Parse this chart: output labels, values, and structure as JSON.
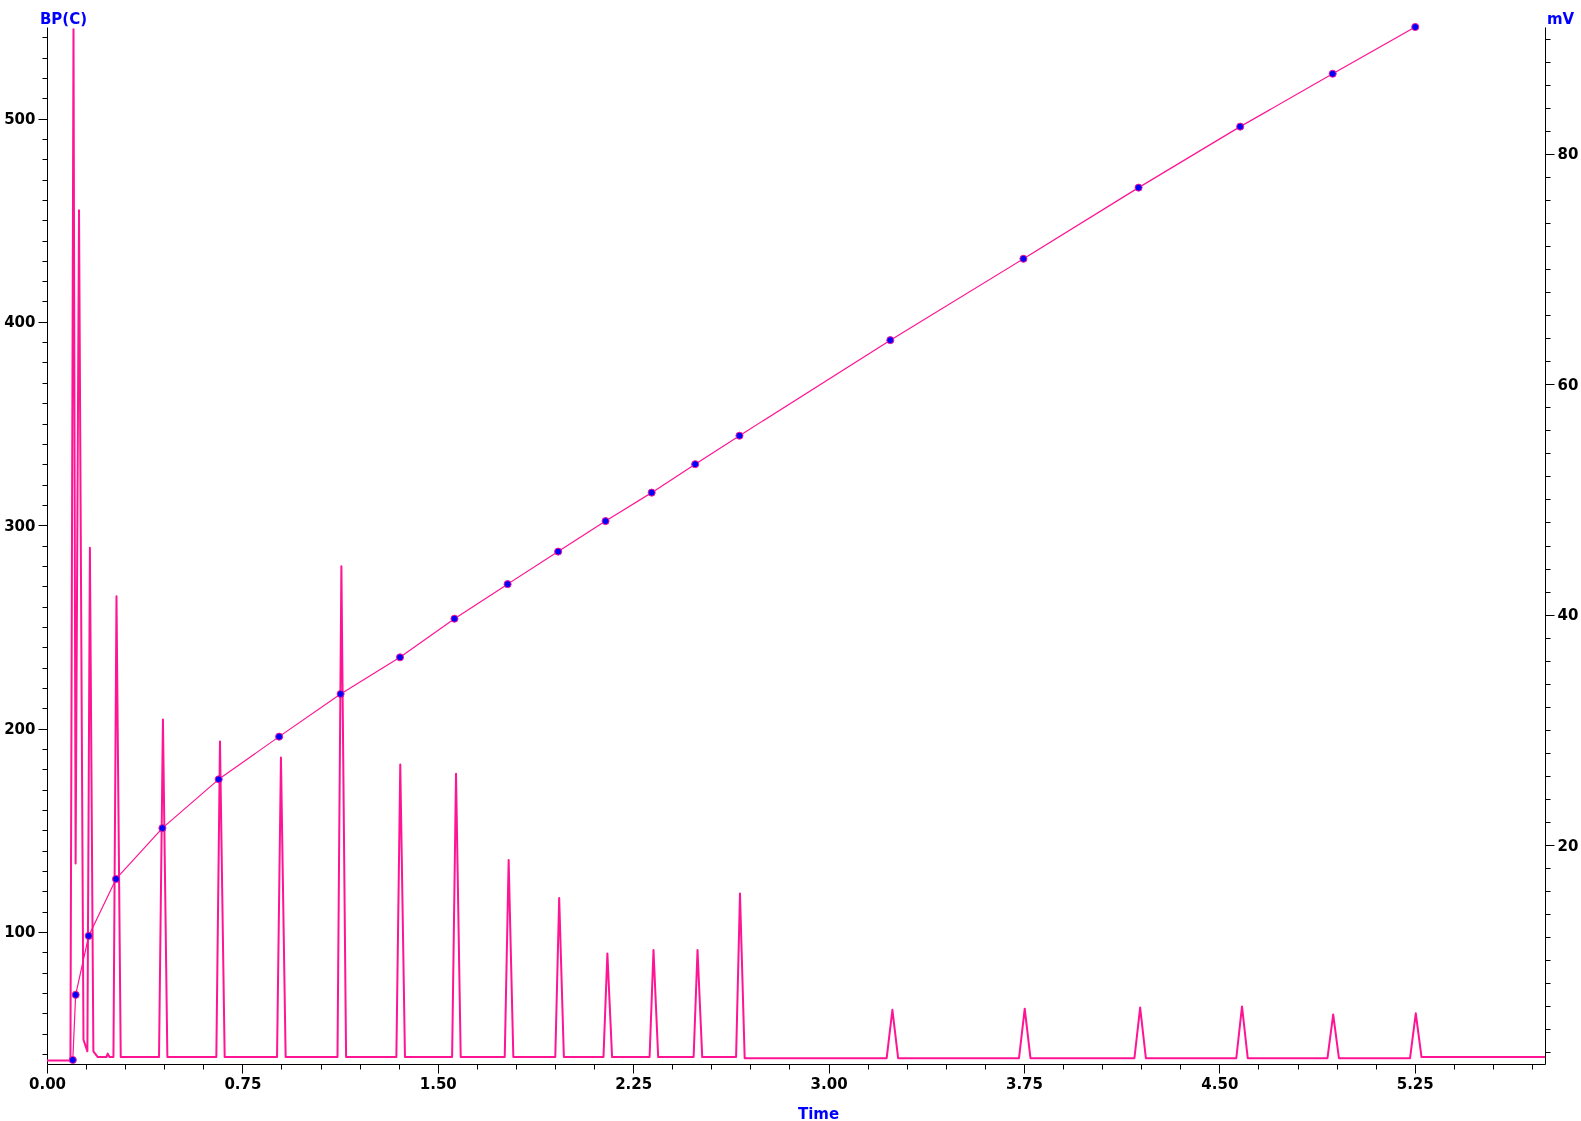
{
  "chart_data": {
    "type": "line",
    "xlabel": "Time",
    "ylabel": "BP(C)",
    "y2label": "mV",
    "xlim": [
      0,
      5.75
    ],
    "ylim": [
      35,
      545
    ],
    "y2lim": [
      1,
      91
    ],
    "xticks": [
      {
        "value": 0,
        "label": "0.00"
      },
      {
        "value": 0.15,
        "label": null
      },
      {
        "value": 0.3,
        "label": null
      },
      {
        "value": 0.45,
        "label": null
      },
      {
        "value": 0.6,
        "label": null
      },
      0.75,
      {
        "value": 0.9,
        "label": null
      },
      {
        "value": 1.05,
        "label": null
      },
      {
        "value": 1.2,
        "label": null
      },
      {
        "value": 1.35,
        "label": null
      },
      {
        "value": 1.5,
        "label": "1.50"
      },
      {
        "value": 1.65,
        "label": null
      },
      {
        "value": 1.8,
        "label": null
      },
      {
        "value": 1.95,
        "label": null
      },
      {
        "value": 2.1,
        "label": null
      },
      2.25,
      {
        "value": 2.4,
        "label": null
      },
      {
        "value": 2.55,
        "label": null
      },
      {
        "value": 2.7,
        "label": null
      },
      {
        "value": 2.85,
        "label": null
      },
      {
        "value": 3,
        "label": "3.00"
      },
      {
        "value": 3.15,
        "label": null
      },
      {
        "value": 3.3,
        "label": null
      },
      {
        "value": 3.45,
        "label": null
      },
      {
        "value": 3.6,
        "label": null
      },
      3.75,
      {
        "value": 3.9,
        "label": null
      },
      {
        "value": 4.05,
        "label": null
      },
      {
        "value": 4.2,
        "label": null
      },
      {
        "value": 4.35,
        "label": null
      },
      {
        "value": 4.5,
        "label": "4.50"
      },
      {
        "value": 4.65,
        "label": null
      },
      {
        "value": 4.8,
        "label": null
      },
      {
        "value": 4.95,
        "label": null
      },
      {
        "value": 5.1,
        "label": null
      },
      5.25,
      {
        "value": 5.4,
        "label": null
      },
      {
        "value": 5.55,
        "label": null
      },
      {
        "value": 5.7,
        "label": null
      }
    ],
    "yticks": [
      {
        "value": 40,
        "label": null
      },
      {
        "value": 50,
        "label": null
      },
      {
        "value": 60,
        "label": null
      },
      {
        "value": 70,
        "label": null
      },
      {
        "value": 80,
        "label": null
      },
      {
        "value": 90,
        "label": null
      },
      100,
      {
        "value": 110,
        "label": null
      },
      {
        "value": 120,
        "label": null
      },
      {
        "value": 130,
        "label": null
      },
      {
        "value": 140,
        "label": null
      },
      {
        "value": 150,
        "label": null
      },
      {
        "value": 160,
        "label": null
      },
      {
        "value": 170,
        "label": null
      },
      {
        "value": 180,
        "label": null
      },
      {
        "value": 190,
        "label": null
      },
      200,
      {
        "value": 210,
        "label": null
      },
      {
        "value": 220,
        "label": null
      },
      {
        "value": 230,
        "label": null
      },
      {
        "value": 240,
        "label": null
      },
      {
        "value": 250,
        "label": null
      },
      {
        "value": 260,
        "label": null
      },
      {
        "value": 270,
        "label": null
      },
      {
        "value": 280,
        "label": null
      },
      {
        "value": 290,
        "label": null
      },
      300,
      {
        "value": 310,
        "label": null
      },
      {
        "value": 320,
        "label": null
      },
      {
        "value": 330,
        "label": null
      },
      {
        "value": 340,
        "label": null
      },
      {
        "value": 350,
        "label": null
      },
      {
        "value": 360,
        "label": null
      },
      {
        "value": 370,
        "label": null
      },
      {
        "value": 380,
        "label": null
      },
      {
        "value": 390,
        "label": null
      },
      400,
      {
        "value": 410,
        "label": null
      },
      {
        "value": 420,
        "label": null
      },
      {
        "value": 430,
        "label": null
      },
      {
        "value": 440,
        "label": null
      },
      {
        "value": 450,
        "label": null
      },
      {
        "value": 460,
        "label": null
      },
      {
        "value": 470,
        "label": null
      },
      {
        "value": 480,
        "label": null
      },
      {
        "value": 490,
        "label": null
      },
      500,
      {
        "value": 510,
        "label": null
      },
      {
        "value": 520,
        "label": null
      },
      {
        "value": 530,
        "label": null
      },
      {
        "value": 540,
        "label": null
      }
    ],
    "y2ticks": [
      {
        "value": 2,
        "label": null
      },
      {
        "value": 4,
        "label": null
      },
      {
        "value": 6,
        "label": null
      },
      {
        "value": 8,
        "label": null
      },
      {
        "value": 10,
        "label": null
      },
      {
        "value": 12,
        "label": null
      },
      {
        "value": 14,
        "label": null
      },
      {
        "value": 16,
        "label": null
      },
      {
        "value": 18,
        "label": null
      },
      20,
      {
        "value": 22,
        "label": null
      },
      {
        "value": 24,
        "label": null
      },
      {
        "value": 26,
        "label": null
      },
      {
        "value": 28,
        "label": null
      },
      {
        "value": 30,
        "label": null
      },
      {
        "value": 32,
        "label": null
      },
      {
        "value": 34,
        "label": null
      },
      {
        "value": 36,
        "label": null
      },
      {
        "value": 38,
        "label": null
      },
      40,
      {
        "value": 42,
        "label": null
      },
      {
        "value": 44,
        "label": null
      },
      {
        "value": 46,
        "label": null
      },
      {
        "value": 48,
        "label": null
      },
      {
        "value": 50,
        "label": null
      },
      {
        "value": 52,
        "label": null
      },
      {
        "value": 54,
        "label": null
      },
      {
        "value": 56,
        "label": null
      },
      {
        "value": 58,
        "label": null
      },
      60,
      {
        "value": 62,
        "label": null
      },
      {
        "value": 64,
        "label": null
      },
      {
        "value": 66,
        "label": null
      },
      {
        "value": 68,
        "label": null
      },
      {
        "value": 70,
        "label": null
      },
      {
        "value": 72,
        "label": null
      },
      {
        "value": 74,
        "label": null
      },
      {
        "value": 76,
        "label": null
      },
      {
        "value": 78,
        "label": null
      },
      80,
      {
        "value": 82,
        "label": null
      },
      {
        "value": 84,
        "label": null
      },
      {
        "value": 86,
        "label": null
      },
      {
        "value": 88,
        "label": null
      },
      {
        "value": 90,
        "label": null
      }
    ],
    "grid": false,
    "series": [
      {
        "axis": "y2",
        "color": "#ff1493",
        "marker": "none",
        "x": [
          0,
          0.09,
          0.1017,
          0.1098,
          0.1229,
          0.14,
          0.155,
          0.1647,
          0.178,
          0.195,
          0.228,
          0.233,
          0.24,
          0.255,
          0.2667,
          0.283,
          0.43,
          0.445,
          0.462,
          0.65,
          0.664,
          0.682,
          0.883,
          0.898,
          0.916,
          1.115,
          1.13,
          1.148,
          1.341,
          1.356,
          1.374,
          1.555,
          1.57,
          1.588,
          1.757,
          1.772,
          1.79,
          1.951,
          1.966,
          1.984,
          2.136,
          2.151,
          2.169,
          2.313,
          2.328,
          2.346,
          2.482,
          2.497,
          2.515,
          2.645,
          2.66,
          2.678,
          3.223,
          3.245,
          3.267,
          3.731,
          3.753,
          3.775,
          4.174,
          4.196,
          4.218,
          4.565,
          4.587,
          4.609,
          4.915,
          4.937,
          4.959,
          5.232,
          5.254,
          5.276,
          5.75
        ],
        "values": [
          1.3,
          1.3,
          90.8,
          18.4,
          75.1,
          3.1,
          2.1,
          45.8,
          2.1,
          1.6,
          1.6,
          1.9,
          1.6,
          1.6,
          41.6,
          1.6,
          1.6,
          30.9,
          1.6,
          1.6,
          29.0,
          1.6,
          1.6,
          27.6,
          1.6,
          1.6,
          44.2,
          1.6,
          1.6,
          27.0,
          1.6,
          1.6,
          26.2,
          1.6,
          1.6,
          18.7,
          1.6,
          1.6,
          15.4,
          1.6,
          1.6,
          10.6,
          1.6,
          1.6,
          10.9,
          1.6,
          1.6,
          10.9,
          1.6,
          1.6,
          15.8,
          1.5,
          1.5,
          5.7,
          1.5,
          1.5,
          5.8,
          1.5,
          1.5,
          5.9,
          1.5,
          1.5,
          6.0,
          1.5,
          1.5,
          5.3,
          1.5,
          1.5,
          5.4,
          1.6,
          1.6
        ]
      },
      {
        "color": "#ff1493",
        "marker": "circle",
        "colors": [
          "#0000ff",
          "#0000ff",
          "#0000ff",
          "#0000ff",
          "#0000ff",
          "#0000ff",
          "#0000ff",
          "#0000ff",
          "#0000ff",
          "#0000ff",
          "#0000ff",
          "#0000ff",
          "#0000ff",
          "#0000ff",
          "#0000ff",
          "#0000ff",
          "#0000ff",
          "#0000ff",
          "#0000ff",
          "#0000ff",
          "#0000ff",
          "#0000ff"
        ],
        "x": [
          0.099,
          0.11,
          0.16,
          0.265,
          0.443,
          0.659,
          0.891,
          1.127,
          1.355,
          1.564,
          1.768,
          1.962,
          2.144,
          2.321,
          2.488,
          2.658,
          3.237,
          3.748,
          4.19,
          4.58,
          4.935,
          5.252
        ],
        "values": [
          37,
          69,
          98,
          126,
          151,
          175,
          196,
          217,
          235,
          254,
          271,
          287,
          302,
          316,
          330,
          344,
          391,
          431,
          466,
          496,
          522,
          545
        ]
      }
    ]
  }
}
